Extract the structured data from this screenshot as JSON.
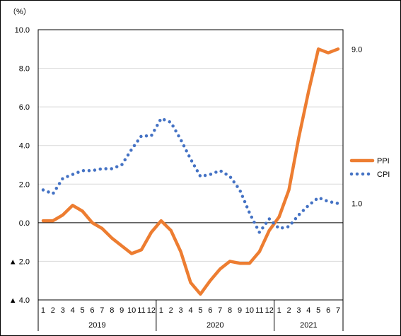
{
  "chart_data": {
    "type": "line",
    "unit_label": "（%）",
    "ylim": [
      -4.0,
      10.0
    ],
    "y_ticks": [
      10.0,
      8.0,
      6.0,
      4.0,
      2.0,
      0.0,
      -2.0,
      -4.0
    ],
    "y_tick_labels": [
      "10.0",
      "8.0",
      "6.0",
      "4.0",
      "2.0",
      "0.0",
      "▲ 2.0",
      "▲ 4.0"
    ],
    "gridlines": true,
    "months": [
      "1",
      "2",
      "3",
      "4",
      "5",
      "6",
      "7",
      "8",
      "9",
      "10",
      "11",
      "12",
      "1",
      "2",
      "3",
      "4",
      "5",
      "6",
      "7",
      "8",
      "9",
      "10",
      "11",
      "12",
      "1",
      "2",
      "3",
      "4",
      "5",
      "6",
      "7"
    ],
    "years": [
      {
        "label": "2019",
        "count": 12
      },
      {
        "label": "2020",
        "count": 12
      },
      {
        "label": "2021",
        "count": 7
      }
    ],
    "series": [
      {
        "name": "PPI",
        "color": "#ED7D31",
        "style": "solid",
        "values": [
          0.1,
          0.1,
          0.4,
          0.9,
          0.6,
          0.0,
          -0.3,
          -0.8,
          -1.2,
          -1.6,
          -1.4,
          -0.5,
          0.1,
          -0.4,
          -1.5,
          -3.1,
          -3.7,
          -3.0,
          -2.4,
          -2.0,
          -2.1,
          -2.1,
          -1.5,
          -0.4,
          0.3,
          1.7,
          4.4,
          6.8,
          9.0,
          8.8,
          9.0
        ],
        "end_label": "9.0"
      },
      {
        "name": "CPI",
        "color": "#4472C4",
        "style": "dotted",
        "values": [
          1.7,
          1.5,
          2.3,
          2.5,
          2.7,
          2.7,
          2.8,
          2.8,
          3.0,
          3.8,
          4.5,
          4.5,
          5.4,
          5.2,
          4.3,
          3.3,
          2.4,
          2.5,
          2.7,
          2.4,
          1.7,
          0.5,
          -0.5,
          0.2,
          -0.3,
          -0.2,
          0.4,
          0.9,
          1.3,
          1.1,
          1.0
        ],
        "end_label": "1.0"
      }
    ]
  }
}
